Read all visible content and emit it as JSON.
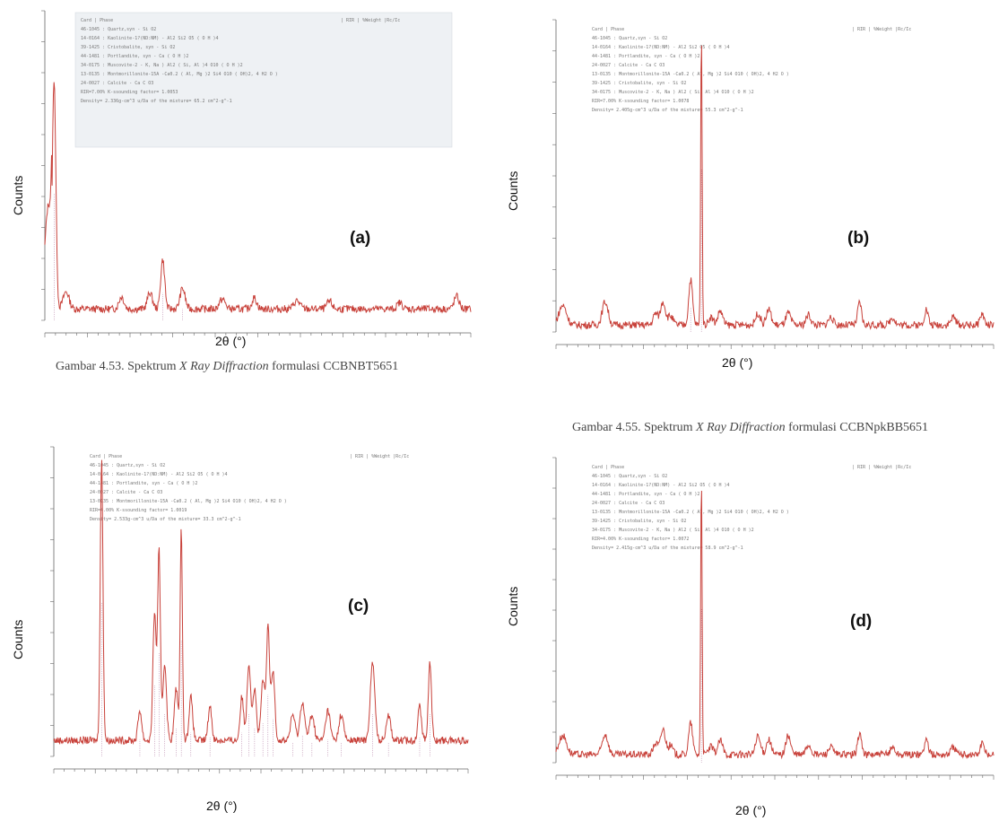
{
  "colors": {
    "trace": "#c8413a",
    "axis": "#666666",
    "stick": "#b07aa0"
  },
  "captions": {
    "c453": {
      "prefix": "Gambar 4.53. Spektrum ",
      "italic": "X Ray Diffraction",
      "suffix": " formulasi CCBNBT5651"
    },
    "c455": {
      "prefix": "Gambar 4.55. Spektrum ",
      "italic": "X Ray Diffraction",
      "suffix": " formulasi CCBNpkBB5651"
    }
  },
  "panels": [
    {
      "tag": "(a)",
      "ylabel": "Counts",
      "xlabel": "2θ (°)",
      "unit": "Counts",
      "phase_header": [
        "Card  |    Phase",
        "| RIR  |  %Weight  |Rc/Ic"
      ],
      "phases": [
        "46-1045 : Quartz,syn - Si O2",
        "14-0164 : Kaolinite-1?(ND:NM) - Al2 Si2 O5 ( O H )4",
        "39-1425 : Cristobalite, syn - Si O2",
        "44-1481 : Portlandite, syn - Ca ( O H )2",
        "34-0175 : Muscovite-2 - K, Na ) Al2 ( Si, Al )4 O10 ( O H )2",
        "13-0135 : Montmorillonite-15A -Ca0.2 ( Al, Mg )2 Si4 O10 ( OH)2, 4 H2 O )",
        "24-0027 : Calcite - Ca C O3",
        "RIR=7.00% K-ssounding factor= 1.0053",
        "Density= 2.336g-cm^3   u/Da of the mixture= 65.2 cm^2-g^-1"
      ],
      "chart_data": {
        "type": "line",
        "title": "",
        "xlabel": "2θ (°)",
        "ylabel": "Counts",
        "xlim": [
          10,
          70
        ],
        "ylim": [
          0,
          4500
        ],
        "series": [
          {
            "peaks": [
              [
                11.3,
                3350,
                0.35
              ],
              [
                13.0,
                250,
                0.6
              ],
              [
                20.8,
                180,
                0.5
              ],
              [
                24.8,
                240,
                0.5
              ],
              [
                26.6,
                720,
                0.4
              ],
              [
                29.4,
                300,
                0.5
              ],
              [
                35.0,
                140,
                0.6
              ],
              [
                39.5,
                160,
                0.5
              ],
              [
                45.5,
                120,
                0.6
              ],
              [
                50.1,
                110,
                0.5
              ],
              [
                60.0,
                90,
                0.5
              ],
              [
                68.0,
                180,
                0.5
              ]
            ],
            "baseline": 120
          }
        ]
      }
    },
    {
      "tag": "(b)",
      "ylabel": "Counts",
      "xlabel": "2θ (°)",
      "unit": "Counts",
      "phase_header": [
        "Card  |    Phase",
        "| RIR  |  %Weight  |Rc/Ic"
      ],
      "phases": [
        "46-1045 : Quartz,syn - Si O2",
        "14-0164 : Kaolinite-1?(ND:NM) - Al2 Si2 O5 ( O H )4",
        "44-1481 : Portlandite, syn - Ca ( O H )2",
        "24-0027 : Calcite - Ca C O3",
        "13-0135 : Montmorillonite-15A -Ca0.2 ( Al, Mg )2 Si4 O10 ( OH)2, 4 H2 O )",
        "39-1425 : Cristobalite, syn - Si O2",
        "34-0175 : Muscovite-2 - K, Na ) Al2 ( Si, Al )4 O10 ( O H )2",
        "RIR=7.00% K-ssounding factor= 1.0078",
        "Density= 2.405g-cm^3   u/Da of the mixture= 55.3 cm^2-g^-1"
      ],
      "chart_data": {
        "type": "line",
        "title": "",
        "xlabel": "2θ (°)",
        "ylabel": "Counts",
        "xlim": [
          5,
          70
        ],
        "ylim": [
          0,
          2400
        ],
        "series": [
          {
            "peaks": [
              [
                6.0,
                150,
                0.8
              ],
              [
                12.3,
                180,
                0.6
              ],
              [
                19.8,
                90,
                0.5
              ],
              [
                20.9,
                180,
                0.5
              ],
              [
                22.0,
                70,
                0.5
              ],
              [
                25.0,
                350,
                0.4
              ],
              [
                26.6,
                2280,
                0.15
              ],
              [
                28.0,
                60,
                0.5
              ],
              [
                29.4,
                110,
                0.5
              ],
              [
                35.0,
                90,
                0.5
              ],
              [
                36.6,
                120,
                0.5
              ],
              [
                39.5,
                90,
                0.5
              ],
              [
                42.5,
                80,
                0.5
              ],
              [
                45.8,
                60,
                0.5
              ],
              [
                50.1,
                170,
                0.4
              ],
              [
                55.0,
                60,
                0.5
              ],
              [
                60.0,
                120,
                0.4
              ],
              [
                64.0,
                60,
                0.5
              ],
              [
                68.3,
                90,
                0.4
              ]
            ],
            "baseline": 30
          }
        ]
      }
    },
    {
      "tag": "(c)",
      "ylabel": "Counts",
      "xlabel": "2θ (°)",
      "unit": "2-theta",
      "phase_header": [
        "Card  |    Phase",
        "| RIR  |  %Weight  |Rc/Ic"
      ],
      "phases": [
        "46-1045 : Quartz,syn - Si O2",
        "14-0164 : Kaolinite-1?(ND:NM) - Al2 Si2 O5 ( O H )4",
        "44-1481 : Portlandite, syn - Ca ( O H )2",
        "24-0027 : Calcite - Ca C O3",
        "13-0135 : Montmorillonite-15A -Ca0.2 ( Al, Mg )2 Si4 O10 ( OH)2, 4 H2 O )",
        "RIR=4.00% K-ssounding factor= 1.0019",
        "Density= 2.533g-cm^3   u/Da of the mixture= 33.3 cm^2-g^-1"
      ],
      "chart_data": {
        "type": "line",
        "title": "",
        "xlabel": "2θ (°)",
        "ylabel": "Counts",
        "xlim": [
          5,
          70
        ],
        "ylim": [
          0,
          3600
        ],
        "series": [
          {
            "peaks": [
              [
                12.5,
                3250,
                0.3
              ],
              [
                18.5,
                350,
                0.4
              ],
              [
                20.8,
                1500,
                0.35
              ],
              [
                21.5,
                2200,
                0.3
              ],
              [
                22.4,
                900,
                0.4
              ],
              [
                24.2,
                600,
                0.4
              ],
              [
                25.0,
                2450,
                0.25
              ],
              [
                26.5,
                500,
                0.4
              ],
              [
                29.5,
                400,
                0.4
              ],
              [
                34.5,
                500,
                0.4
              ],
              [
                35.6,
                900,
                0.4
              ],
              [
                36.5,
                600,
                0.4
              ],
              [
                37.8,
                700,
                0.4
              ],
              [
                38.6,
                1300,
                0.35
              ],
              [
                39.4,
                800,
                0.4
              ],
              [
                42.5,
                300,
                0.5
              ],
              [
                44.0,
                450,
                0.5
              ],
              [
                45.5,
                300,
                0.5
              ],
              [
                48.0,
                350,
                0.5
              ],
              [
                50.1,
                300,
                0.5
              ],
              [
                55.0,
                900,
                0.5
              ],
              [
                57.5,
                300,
                0.5
              ],
              [
                62.4,
                400,
                0.4
              ],
              [
                64.0,
                900,
                0.35
              ]
            ],
            "baseline": 150
          }
        ]
      }
    },
    {
      "tag": "(d)",
      "ylabel": "Counts",
      "xlabel": "2θ (°)",
      "unit": "Counts",
      "phase_header": [
        "Card  |    Phase",
        "| RIR  |  %Weight  |Rc/Ic"
      ],
      "phases": [
        "46-1045 : Quartz,syn - Si O2",
        "14-0164 : Kaolinite-1?(ND:NM) - Al2 Si2 O5 ( O H )4",
        "44-1481 : Portlandite, syn - Ca ( O H )2",
        "24-0027 : Calcite - Ca C O3",
        "13-0135 : Montmorillonite-15A -Ca0.2 ( Al, Mg )2 Si4 O10 ( OH)2, 4 H2 O )",
        "39-1425 : Cristobalite, syn - Si O2",
        "34-0175 : Muscovite-2 - K, Na ) Al2 ( Si, Al )4 O10 ( O H )2",
        "RIR=4.00% K-ssounding factor= 1.0072",
        "Density= 2.415g-cm^3   u/Da of the mixture= 58.9 cm^2-g^-1"
      ],
      "chart_data": {
        "type": "line",
        "title": "",
        "xlabel": "2θ (°)",
        "ylabel": "Counts",
        "xlim": [
          5,
          70
        ],
        "ylim": [
          0,
          2400
        ],
        "series": [
          {
            "peaks": [
              [
                6.0,
                150,
                0.8
              ],
              [
                12.3,
                160,
                0.6
              ],
              [
                19.8,
                90,
                0.5
              ],
              [
                20.9,
                200,
                0.5
              ],
              [
                22.0,
                70,
                0.5
              ],
              [
                25.0,
                250,
                0.4
              ],
              [
                26.6,
                2200,
                0.15
              ],
              [
                28.0,
                60,
                0.5
              ],
              [
                29.4,
                110,
                0.5
              ],
              [
                35.0,
                140,
                0.5
              ],
              [
                36.6,
                120,
                0.5
              ],
              [
                39.5,
                150,
                0.5
              ],
              [
                42.5,
                80,
                0.5
              ],
              [
                45.8,
                60,
                0.5
              ],
              [
                50.1,
                170,
                0.4
              ],
              [
                55.0,
                60,
                0.5
              ],
              [
                60.0,
                120,
                0.4
              ],
              [
                64.0,
                60,
                0.5
              ],
              [
                68.3,
                90,
                0.4
              ]
            ],
            "baseline": 40
          }
        ]
      }
    }
  ]
}
